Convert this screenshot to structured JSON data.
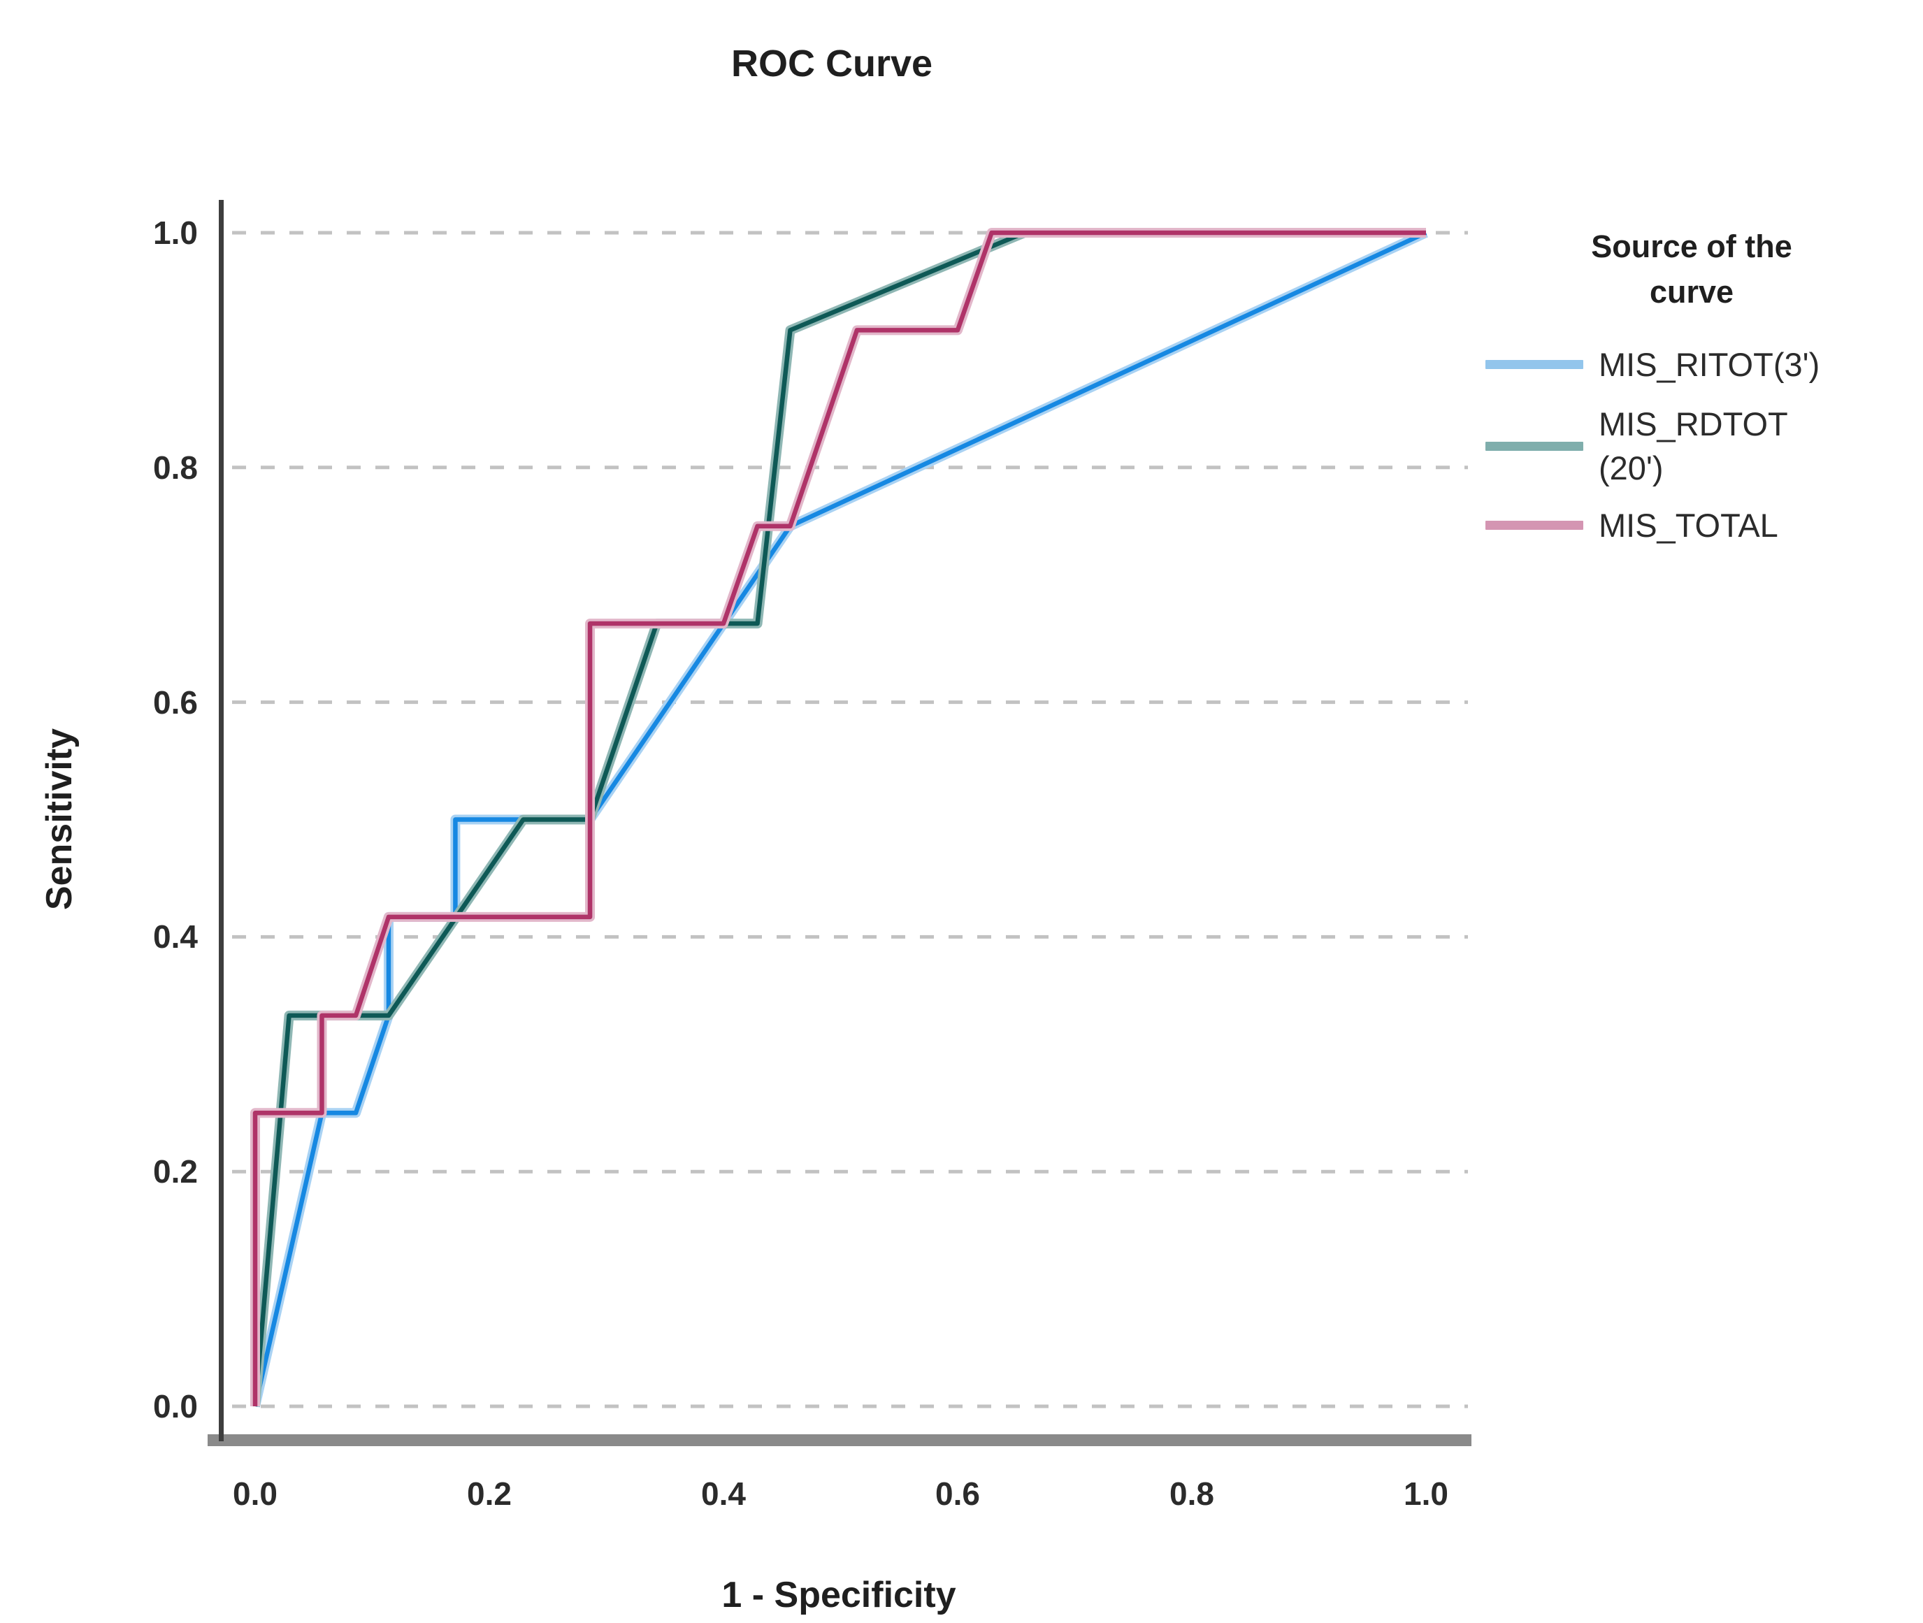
{
  "title": "ROC Curve",
  "axes": {
    "x_label": "1 - Specificity",
    "y_label": "Sensitivity",
    "x_ticks": [
      "0.0",
      "0.2",
      "0.4",
      "0.6",
      "0.8",
      "1.0"
    ],
    "y_ticks": [
      "0.0",
      "0.2",
      "0.4",
      "0.6",
      "0.8",
      "1.0"
    ]
  },
  "legend": {
    "title": "Source of the\ncurve",
    "items": [
      {
        "label": "MIS_RITOT(3')",
        "swatch_color": "#92C5EC"
      },
      {
        "label": "MIS_RDTOT\n(20')",
        "swatch_color": "#7FAEAC"
      },
      {
        "label": "MIS_TOTAL",
        "swatch_color": "#D495B2"
      }
    ]
  },
  "colors": {
    "gridline": "#C2C2C2",
    "y_axis_line": "#3E3E3E",
    "x_axis_bar": "#8A8A8A",
    "text": "#2b2b2b",
    "background": "#FFFFFF"
  },
  "chart_data": {
    "type": "line",
    "title": "ROC Curve",
    "xlabel": "1 - Specificity",
    "ylabel": "Sensitivity",
    "xlim": [
      0,
      1
    ],
    "ylim": [
      0,
      1
    ],
    "grid": "horizontal dashed at 0.0,0.2,0.4,0.6,0.8,1.0",
    "legend_position": "right",
    "series": [
      {
        "name": "MIS_RITOT(3')",
        "color": "#1688E2",
        "halo_color": "#A9D2F3",
        "points": [
          [
            0,
            0
          ],
          [
            0.057,
            0.25
          ],
          [
            0.086,
            0.25
          ],
          [
            0.114,
            0.333
          ],
          [
            0.114,
            0.417
          ],
          [
            0.171,
            0.417
          ],
          [
            0.171,
            0.5
          ],
          [
            0.286,
            0.5
          ],
          [
            0.457,
            0.75
          ],
          [
            1,
            1
          ]
        ]
      },
      {
        "name": "MIS_RDTOT(20')",
        "color": "#0E5956",
        "halo_color": "#8FB7B4",
        "points": [
          [
            0,
            0
          ],
          [
            0.029,
            0.333
          ],
          [
            0.114,
            0.333
          ],
          [
            0.229,
            0.5
          ],
          [
            0.286,
            0.5
          ],
          [
            0.343,
            0.667
          ],
          [
            0.429,
            0.667
          ],
          [
            0.457,
            0.917
          ],
          [
            0.657,
            1
          ],
          [
            1,
            1
          ]
        ]
      },
      {
        "name": "MIS_TOTAL",
        "color": "#AF3368",
        "halo_color": "#E2B7CA",
        "points": [
          [
            0,
            0
          ],
          [
            0,
            0.25
          ],
          [
            0.057,
            0.25
          ],
          [
            0.057,
            0.333
          ],
          [
            0.086,
            0.333
          ],
          [
            0.114,
            0.417
          ],
          [
            0.286,
            0.417
          ],
          [
            0.286,
            0.667
          ],
          [
            0.4,
            0.667
          ],
          [
            0.429,
            0.75
          ],
          [
            0.457,
            0.75
          ],
          [
            0.514,
            0.917
          ],
          [
            0.6,
            0.917
          ],
          [
            0.629,
            1
          ],
          [
            1,
            1
          ]
        ]
      }
    ]
  }
}
